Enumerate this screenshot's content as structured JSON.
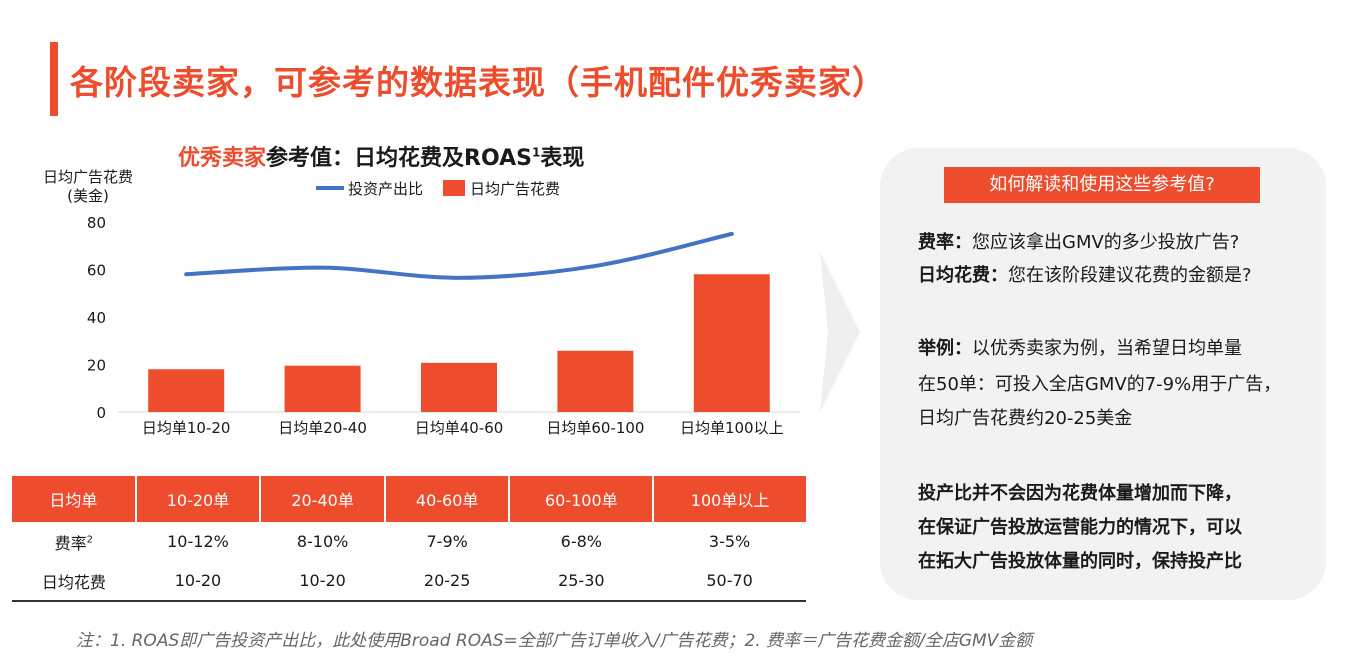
{
  "header": {
    "title": "各阶段卖家，可参考的数据表现（手机配件优秀卖家）"
  },
  "chart_data": {
    "type": "bar",
    "title_highlight": "优秀卖家",
    "title_rest": "参考值：日均花费及ROAS",
    "title_sup": "1",
    "title_tail": "表现",
    "ylabel_line1": "日均广告花费",
    "ylabel_line2": "(美金)",
    "categories": [
      "日均单10-20",
      "日均单20-40",
      "日均单40-60",
      "日均单60-100",
      "日均单100以上"
    ],
    "ylim": [
      0,
      80
    ],
    "yticks": [
      0,
      20,
      40,
      60,
      80
    ],
    "series": [
      {
        "name": "日均广告花费",
        "type": "bar",
        "values": [
          18,
          19.5,
          20.7,
          25.8,
          58
        ]
      },
      {
        "name": "投资产出比",
        "type": "line",
        "values": [
          58,
          60.8,
          56.5,
          61.5,
          75
        ]
      }
    ],
    "legend_position": "top",
    "colors": {
      "bar": "#ee4d2d",
      "line": "#4472c4"
    }
  },
  "table": {
    "headers": [
      "日均单",
      "10-20单",
      "20-40单",
      "40-60单",
      "60-100单",
      "100单以上"
    ],
    "rows": [
      {
        "label": "费率",
        "sup": "2",
        "cells": [
          "10-12%",
          "8-10%",
          "7-9%",
          "6-8%",
          "3-5%"
        ]
      },
      {
        "label": "日均花费",
        "sup": "",
        "cells": [
          "10-20",
          "10-20",
          "20-25",
          "25-30",
          "50-70"
        ]
      }
    ]
  },
  "panel": {
    "heading": "如何解读和使用这些参考值?",
    "line1_bold": "费率：",
    "line1_text": "您应该拿出GMV的多少投放广告?",
    "line2_bold": "日均花费：",
    "line2_text": "您在该阶段建议花费的金额是?",
    "example_bold": "举例：",
    "example_line1": "以优秀卖家为例，当希望日均单量",
    "example_line2": "在50单：可投入全店GMV的7-9%用于广告，",
    "example_line3": "日均广告花费约20-25美金",
    "note_line1": "投产比并不会因为花费体量增加而下降，",
    "note_line2": "在保证广告投放运营能力的情况下，可以",
    "note_line3": "在拓大广告投放体量的同时，保持投产比"
  },
  "footnote": "注：1. ROAS即广告投资产出比，此处使用Broad ROAS=全部广告订单收入/广告花费；2. 费率＝广告花费金额/全店GMV金额",
  "colors": {
    "accent": "#ee4d2d",
    "panel_bg": "#f2f2f2"
  }
}
